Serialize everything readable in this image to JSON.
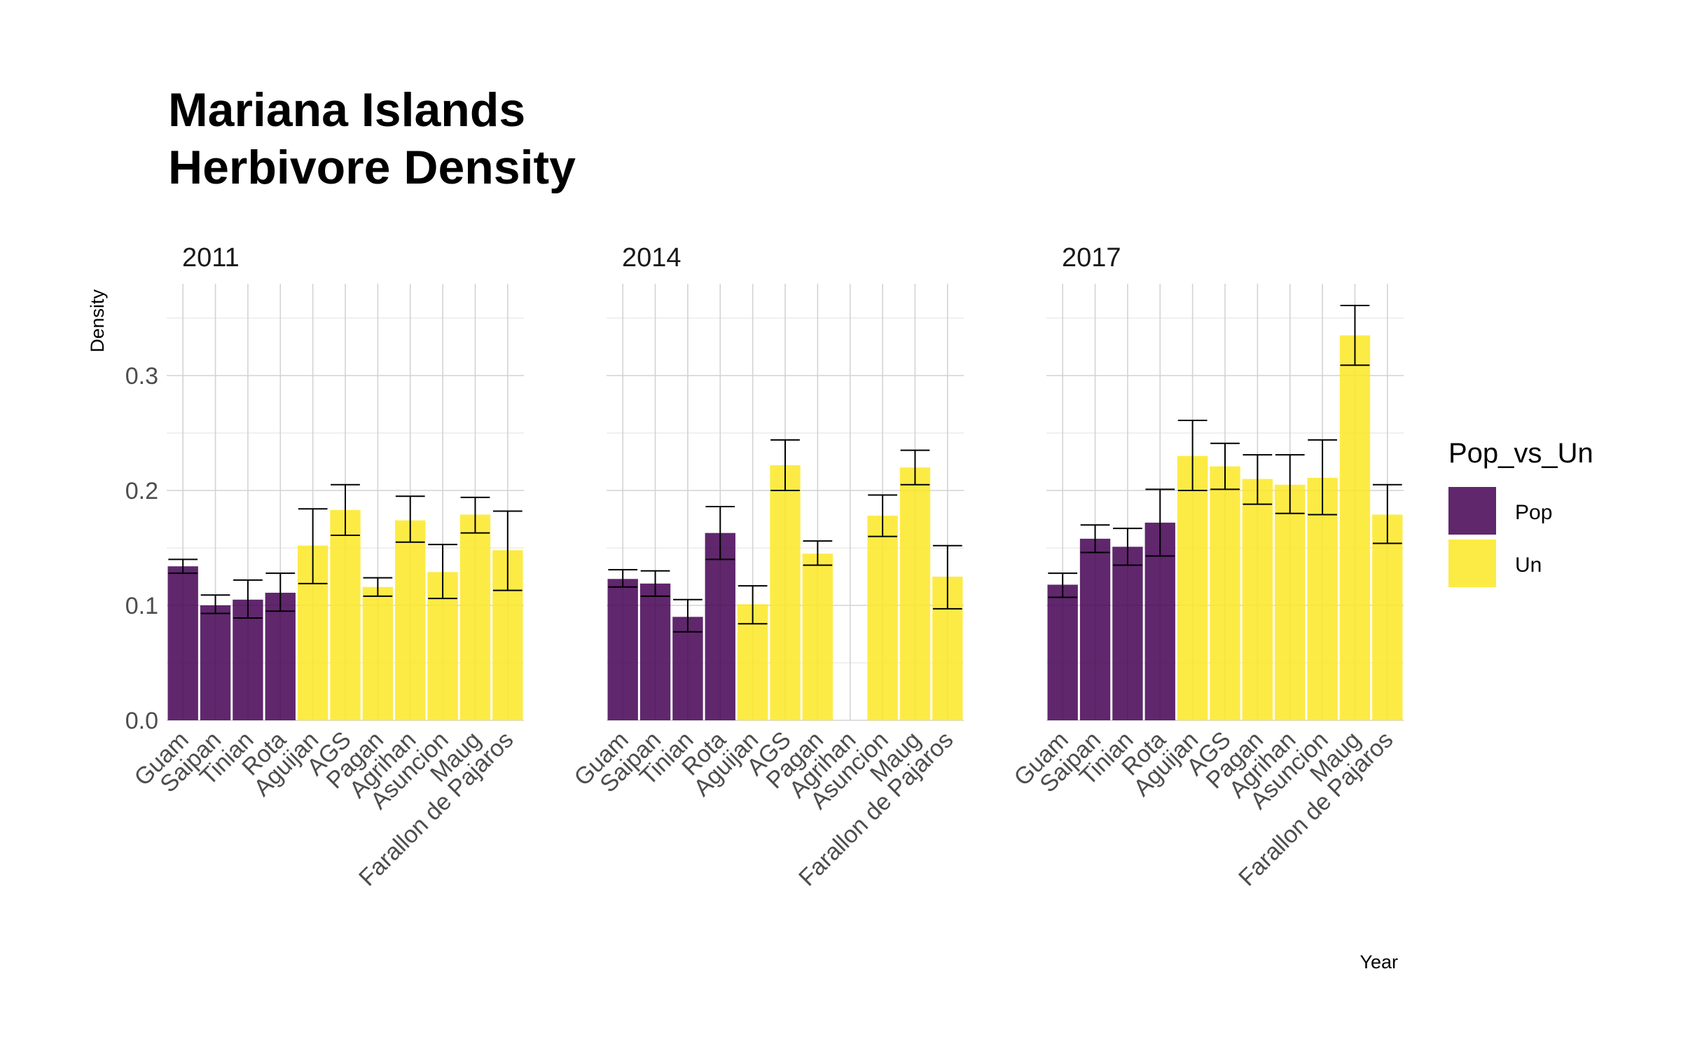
{
  "chart_data": {
    "type": "bar",
    "title": [
      "Mariana Islands",
      "Herbivore Density"
    ],
    "xlabel": "Year",
    "ylabel": "Density",
    "ylim": [
      0,
      0.37
    ],
    "yticks": [
      0.0,
      0.1,
      0.2,
      0.3
    ],
    "ytick_labels": [
      "0.0",
      "0.1",
      "0.2",
      "0.3"
    ],
    "grid": true,
    "categories": [
      "Guam",
      "Saipan",
      "Tinian",
      "Rota",
      "Aguijan",
      "AGS",
      "Pagan",
      "Agrihan",
      "Asuncion",
      "Maug",
      "Farallon de Pajaros"
    ],
    "groups": [
      "Pop",
      "Pop",
      "Pop",
      "Pop",
      "Un",
      "Un",
      "Un",
      "Un",
      "Un",
      "Un",
      "Un"
    ],
    "legend": {
      "title": "Pop_vs_Un",
      "placement": "right",
      "items": [
        {
          "key": "Pop",
          "label": "Pop",
          "color": "#440154"
        },
        {
          "key": "Un",
          "label": "Un",
          "color": "#FDE725"
        }
      ]
    },
    "panels": [
      {
        "label": "2011",
        "values": [
          0.134,
          0.1,
          0.105,
          0.111,
          0.152,
          0.183,
          0.116,
          0.174,
          0.129,
          0.179,
          0.148
        ],
        "err_low": [
          0.128,
          0.093,
          0.089,
          0.095,
          0.119,
          0.161,
          0.108,
          0.155,
          0.106,
          0.163,
          0.113
        ],
        "err_high": [
          0.14,
          0.109,
          0.122,
          0.128,
          0.184,
          0.205,
          0.124,
          0.195,
          0.153,
          0.194,
          0.182
        ]
      },
      {
        "label": "2014",
        "values": [
          0.123,
          0.119,
          0.09,
          0.163,
          0.101,
          0.222,
          0.145,
          null,
          0.178,
          0.22,
          0.125
        ],
        "err_low": [
          0.116,
          0.108,
          0.077,
          0.14,
          0.084,
          0.2,
          0.135,
          null,
          0.16,
          0.205,
          0.097
        ],
        "err_high": [
          0.131,
          0.13,
          0.105,
          0.186,
          0.117,
          0.244,
          0.156,
          null,
          0.196,
          0.235,
          0.152
        ]
      },
      {
        "label": "2017",
        "values": [
          0.118,
          0.158,
          0.151,
          0.172,
          0.23,
          0.221,
          0.21,
          0.205,
          0.211,
          0.335,
          0.179
        ],
        "err_low": [
          0.107,
          0.146,
          0.135,
          0.143,
          0.2,
          0.201,
          0.188,
          0.18,
          0.179,
          0.309,
          0.154
        ],
        "err_high": [
          0.128,
          0.17,
          0.167,
          0.201,
          0.261,
          0.241,
          0.231,
          0.231,
          0.244,
          0.361,
          0.205
        ]
      }
    ]
  }
}
